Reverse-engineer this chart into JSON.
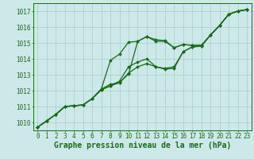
{
  "xlabel": "Graphe pression niveau de la mer (hPa)",
  "xlim": [
    -0.5,
    23.5
  ],
  "ylim": [
    1009.5,
    1017.5
  ],
  "yticks": [
    1010,
    1011,
    1012,
    1013,
    1014,
    1015,
    1016,
    1017
  ],
  "xticks": [
    0,
    1,
    2,
    3,
    4,
    5,
    6,
    7,
    8,
    9,
    10,
    11,
    12,
    13,
    14,
    15,
    16,
    17,
    18,
    19,
    20,
    21,
    22,
    23
  ],
  "background_color": "#cce8e8",
  "grid_color": "#aacccc",
  "line_color": "#1a6b1a",
  "series": [
    [
      1009.7,
      1010.1,
      1010.5,
      1011.0,
      1011.05,
      1011.1,
      1011.5,
      1012.05,
      1012.3,
      1012.5,
      1013.05,
      1015.1,
      1015.4,
      1015.2,
      1015.15,
      1014.7,
      1014.9,
      1014.85,
      1014.85,
      1015.5,
      1016.1,
      1016.8,
      1017.0,
      1017.1
    ],
    [
      1009.7,
      1010.1,
      1010.5,
      1011.0,
      1011.05,
      1011.1,
      1011.5,
      1012.05,
      1012.3,
      1012.6,
      1013.5,
      1013.8,
      1014.0,
      1013.5,
      1013.4,
      1013.5,
      1014.45,
      1014.75,
      1014.8,
      1015.5,
      1016.1,
      1016.8,
      1017.0,
      1017.1
    ],
    [
      1009.7,
      1010.1,
      1010.5,
      1011.0,
      1011.05,
      1011.1,
      1011.5,
      1012.1,
      1012.4,
      1012.5,
      1013.1,
      1013.5,
      1013.7,
      1013.5,
      1013.35,
      1013.4,
      1014.45,
      1014.75,
      1014.8,
      1015.5,
      1016.1,
      1016.8,
      1017.0,
      1017.1
    ],
    [
      1009.7,
      1010.1,
      1010.5,
      1011.0,
      1011.05,
      1011.1,
      1011.5,
      1012.1,
      1013.9,
      1014.3,
      1015.05,
      1015.1,
      1015.4,
      1015.1,
      1015.1,
      1014.7,
      1014.9,
      1014.85,
      1014.85,
      1015.5,
      1016.1,
      1016.8,
      1017.0,
      1017.1
    ]
  ],
  "marker": "D",
  "marker_size": 2.0,
  "line_width": 0.9,
  "font_family": "monospace",
  "xlabel_fontsize": 7.0,
  "tick_fontsize": 5.5,
  "xlabel_color": "#1a6b1a"
}
